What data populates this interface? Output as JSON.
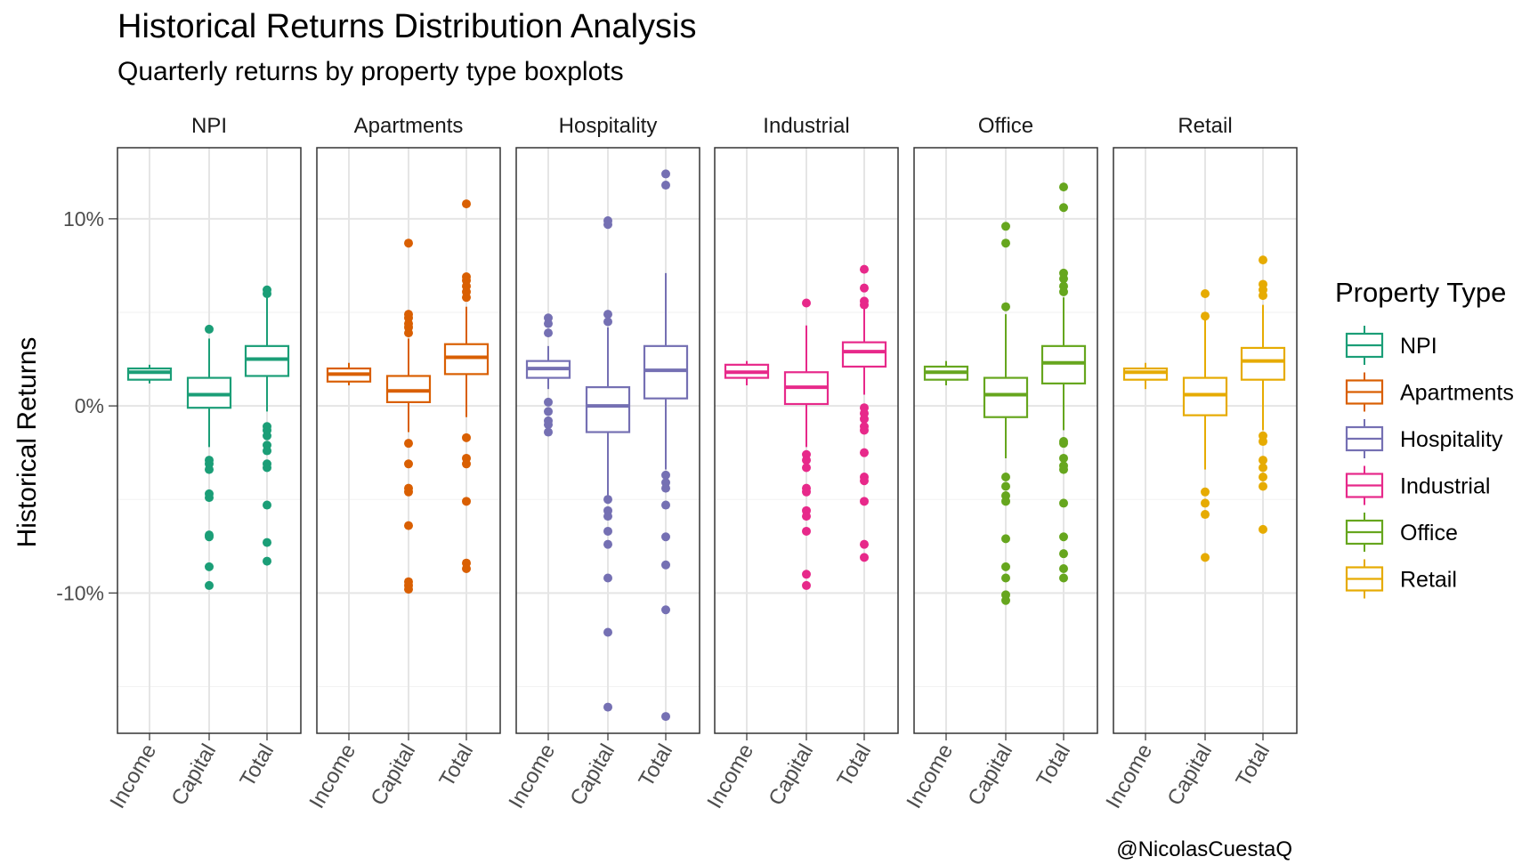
{
  "chart_data": {
    "type": "boxplot",
    "title": "Historical Returns Distribution Analysis",
    "subtitle": "Quarterly returns by property type boxplots",
    "ylabel": "Historical Returns",
    "xlabel": "",
    "ylim": [
      -17.5,
      13.8
    ],
    "y_ticks": [
      10,
      0,
      -10
    ],
    "y_tick_labels": [
      "10%",
      "0%",
      "-10%"
    ],
    "y_minor_ticks": [
      5,
      -5,
      -15
    ],
    "categories": [
      "Income",
      "Capital",
      "Total"
    ],
    "grid": true,
    "legend": {
      "title": "Property Type",
      "placement": "right",
      "items": [
        "NPI",
        "Apartments",
        "Hospitality",
        "Industrial",
        "Office",
        "Retail"
      ]
    },
    "caption": "@NicolasCuestaQ",
    "colors": {
      "NPI": "#1b9e77",
      "Apartments": "#d95f02",
      "Hospitality": "#7570b3",
      "Industrial": "#e7298a",
      "Office": "#66a61e",
      "Retail": "#e6ab02"
    },
    "panels": [
      {
        "name": "NPI",
        "boxes": [
          {
            "category": "Income",
            "low": 1.2,
            "q1": 1.4,
            "median": 1.8,
            "q3": 2.0,
            "high": 2.2,
            "outliers": []
          },
          {
            "category": "Capital",
            "low": -2.2,
            "q1": -0.1,
            "median": 0.6,
            "q3": 1.5,
            "high": 3.6,
            "outliers": [
              4.1,
              -2.9,
              -3.1,
              -3.4,
              -4.7,
              -4.9,
              -6.9,
              -7.0,
              -8.6,
              -9.6
            ]
          },
          {
            "category": "Total",
            "low": -0.3,
            "q1": 1.6,
            "median": 2.5,
            "q3": 3.2,
            "high": 5.8,
            "outliers": [
              6.0,
              6.2,
              -1.1,
              -1.3,
              -1.6,
              -2.1,
              -2.4,
              -3.1,
              -3.3,
              -5.3,
              -7.3,
              -8.3
            ]
          }
        ]
      },
      {
        "name": "Apartments",
        "boxes": [
          {
            "category": "Income",
            "low": 1.1,
            "q1": 1.3,
            "median": 1.7,
            "q3": 2.0,
            "high": 2.3,
            "outliers": []
          },
          {
            "category": "Capital",
            "low": -1.4,
            "q1": 0.2,
            "median": 0.8,
            "q3": 1.6,
            "high": 3.6,
            "outliers": [
              8.7,
              3.9,
              4.2,
              4.4,
              4.7,
              4.9,
              -2.0,
              -3.1,
              -4.4,
              -4.6,
              -6.4,
              -9.4,
              -9.6,
              -9.8
            ]
          },
          {
            "category": "Total",
            "low": -0.6,
            "q1": 1.7,
            "median": 2.6,
            "q3": 3.3,
            "high": 5.3,
            "outliers": [
              10.8,
              5.8,
              6.1,
              6.4,
              6.7,
              6.9,
              -1.7,
              -2.8,
              -3.1,
              -5.1,
              -8.4,
              -8.7
            ]
          }
        ]
      },
      {
        "name": "Hospitality",
        "boxes": [
          {
            "category": "Income",
            "low": 0.9,
            "q1": 1.5,
            "median": 2.0,
            "q3": 2.4,
            "high": 3.2,
            "outliers": [
              3.9,
              4.4,
              4.7,
              0.2,
              -0.3,
              -0.8,
              -1.0,
              -1.4
            ]
          },
          {
            "category": "Capital",
            "low": -4.8,
            "q1": -1.4,
            "median": 0.0,
            "q3": 1.0,
            "high": 4.2,
            "outliers": [
              9.7,
              9.9,
              4.5,
              4.9,
              -5.0,
              -5.6,
              -5.9,
              -6.7,
              -7.4,
              -9.2,
              -12.1,
              -16.1
            ]
          },
          {
            "category": "Total",
            "low": -3.4,
            "q1": 0.4,
            "median": 1.9,
            "q3": 3.2,
            "high": 7.1,
            "outliers": [
              12.4,
              11.8,
              -3.7,
              -4.1,
              -4.4,
              -5.3,
              -7.0,
              -8.5,
              -10.9,
              -16.6
            ]
          }
        ]
      },
      {
        "name": "Industrial",
        "boxes": [
          {
            "category": "Income",
            "low": 1.1,
            "q1": 1.5,
            "median": 1.8,
            "q3": 2.2,
            "high": 2.4,
            "outliers": []
          },
          {
            "category": "Capital",
            "low": -2.2,
            "q1": 0.1,
            "median": 1.0,
            "q3": 1.8,
            "high": 4.3,
            "outliers": [
              5.5,
              -2.6,
              -2.9,
              -3.3,
              -4.4,
              -4.6,
              -5.6,
              -5.9,
              -6.7,
              -9.0,
              -9.6
            ]
          },
          {
            "category": "Total",
            "low": 0.6,
            "q1": 2.1,
            "median": 2.9,
            "q3": 3.4,
            "high": 5.2,
            "outliers": [
              7.3,
              6.3,
              5.6,
              5.4,
              -0.1,
              -0.4,
              -0.7,
              -1.1,
              -1.3,
              -2.5,
              -3.8,
              -4.0,
              -5.1,
              -7.4,
              -8.1
            ]
          }
        ]
      },
      {
        "name": "Office",
        "boxes": [
          {
            "category": "Income",
            "low": 1.1,
            "q1": 1.4,
            "median": 1.8,
            "q3": 2.1,
            "high": 2.4,
            "outliers": []
          },
          {
            "category": "Capital",
            "low": -2.8,
            "q1": -0.6,
            "median": 0.6,
            "q3": 1.5,
            "high": 4.9,
            "outliers": [
              9.6,
              8.7,
              5.3,
              -3.8,
              -4.3,
              -4.8,
              -5.1,
              -7.1,
              -8.6,
              -9.2,
              -10.1,
              -10.4
            ]
          },
          {
            "category": "Total",
            "low": -1.3,
            "q1": 1.2,
            "median": 2.3,
            "q3": 3.2,
            "high": 5.8,
            "outliers": [
              11.7,
              10.6,
              7.1,
              6.8,
              6.4,
              6.1,
              -1.9,
              -2.0,
              -2.8,
              -3.2,
              -3.4,
              -5.2,
              -7.0,
              -7.9,
              -8.7,
              -9.2
            ]
          }
        ]
      },
      {
        "name": "Retail",
        "boxes": [
          {
            "category": "Income",
            "low": 0.9,
            "q1": 1.4,
            "median": 1.8,
            "q3": 2.0,
            "high": 2.3,
            "outliers": []
          },
          {
            "category": "Capital",
            "low": -3.4,
            "q1": -0.5,
            "median": 0.6,
            "q3": 1.5,
            "high": 4.6,
            "outliers": [
              6.0,
              4.8,
              -4.6,
              -5.2,
              -5.8,
              -8.1
            ]
          },
          {
            "category": "Total",
            "low": -1.3,
            "q1": 1.4,
            "median": 2.4,
            "q3": 3.1,
            "high": 5.4,
            "outliers": [
              7.8,
              6.5,
              6.2,
              5.9,
              -1.6,
              -1.9,
              -2.9,
              -3.3,
              -3.8,
              -4.3,
              -6.6
            ]
          }
        ]
      }
    ]
  }
}
